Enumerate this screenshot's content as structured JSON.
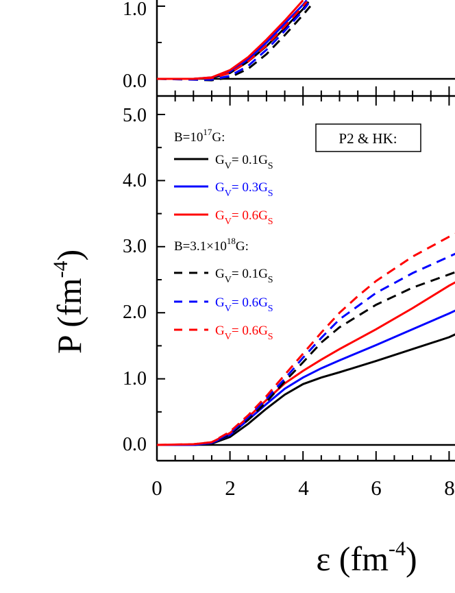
{
  "chart_data": [
    {
      "panel": "top",
      "type": "line",
      "note": "partially visible upper panel (cropped)",
      "ylim": [
        -0.25,
        1.15
      ],
      "xlim": [
        0,
        8.2
      ],
      "y_ticks": [
        {
          "value": 1.0,
          "label": "1.0"
        },
        {
          "value": 0.0,
          "label": "0.0"
        }
      ],
      "series": [
        {
          "color": "#000000",
          "dash": "solid",
          "points": [
            [
              0,
              0
            ],
            [
              1,
              0
            ],
            [
              1.5,
              0.01
            ],
            [
              2,
              0.08
            ],
            [
              2.5,
              0.24
            ],
            [
              3,
              0.45
            ],
            [
              3.5,
              0.7
            ],
            [
              4,
              0.96
            ],
            [
              4.15,
              1.06
            ]
          ]
        },
        {
          "color": "#0000ff",
          "dash": "solid",
          "points": [
            [
              0,
              0
            ],
            [
              1,
              0
            ],
            [
              1.5,
              0.02
            ],
            [
              2,
              0.1
            ],
            [
              2.5,
              0.27
            ],
            [
              3,
              0.5
            ],
            [
              3.5,
              0.76
            ],
            [
              4,
              1.02
            ],
            [
              4.1,
              1.08
            ]
          ]
        },
        {
          "color": "#ff0000",
          "dash": "solid",
          "points": [
            [
              0,
              0
            ],
            [
              1,
              0
            ],
            [
              1.5,
              0.02
            ],
            [
              2,
              0.12
            ],
            [
              2.5,
              0.3
            ],
            [
              3,
              0.54
            ],
            [
              3.5,
              0.8
            ],
            [
              4,
              1.08
            ]
          ]
        },
        {
          "color": "#000000",
          "dash": "dashed",
          "points": [
            [
              0,
              0
            ],
            [
              1,
              -0.01
            ],
            [
              1.5,
              -0.02
            ],
            [
              2,
              0.02
            ],
            [
              2.5,
              0.14
            ],
            [
              3,
              0.34
            ],
            [
              3.5,
              0.6
            ],
            [
              4,
              0.88
            ],
            [
              4.2,
              1.0
            ]
          ]
        },
        {
          "color": "#0000ff",
          "dash": "dashed",
          "points": [
            [
              0,
              0
            ],
            [
              1,
              -0.01
            ],
            [
              1.5,
              -0.01
            ],
            [
              2,
              0.04
            ],
            [
              2.5,
              0.18
            ],
            [
              3,
              0.4
            ],
            [
              3.5,
              0.66
            ],
            [
              4,
              0.94
            ],
            [
              4.15,
              1.04
            ]
          ]
        },
        {
          "color": "#ff0000",
          "dash": "dashed",
          "points": [
            [
              0,
              0
            ],
            [
              1,
              0
            ],
            [
              1.5,
              0.01
            ],
            [
              2,
              0.08
            ],
            [
              2.5,
              0.24
            ],
            [
              3,
              0.46
            ],
            [
              3.5,
              0.72
            ],
            [
              4,
              1.0
            ],
            [
              4.1,
              1.06
            ]
          ]
        }
      ]
    },
    {
      "panel": "bottom",
      "type": "line",
      "xlabel": "ε (fm",
      "xlabel_sup": "-4",
      "xlabel_close": ")",
      "ylabel": "P (fm",
      "ylabel_sup": "-4",
      "ylabel_close": ")",
      "xlim": [
        0,
        8.2
      ],
      "ylim": [
        -0.25,
        5.2
      ],
      "x_ticks": [
        {
          "value": 0,
          "label": "0"
        },
        {
          "value": 2,
          "label": "2"
        },
        {
          "value": 4,
          "label": "4"
        },
        {
          "value": 6,
          "label": "6"
        },
        {
          "value": 8,
          "label": "8"
        }
      ],
      "y_ticks": [
        {
          "value": 5.0,
          "label": "5.0"
        },
        {
          "value": 4.0,
          "label": "4.0"
        },
        {
          "value": 3.0,
          "label": "3.0"
        },
        {
          "value": 2.0,
          "label": "2.0"
        },
        {
          "value": 1.0,
          "label": "1.0"
        },
        {
          "value": 0.0,
          "label": "0.0"
        }
      ],
      "annotation": "P2 & HK:",
      "legend": {
        "group1_title": "B=10",
        "group1_title_sup": "17",
        "group1_title_tail": "G:",
        "group2_title": "B=3.1×10",
        "group2_title_sup": "18",
        "group2_title_tail": "G:",
        "entries": [
          {
            "text": "G",
            "sub": "V",
            "mid": "= 0.1G",
            "sub2": "S",
            "color": "#000000",
            "dash": "solid"
          },
          {
            "text": "G",
            "sub": "V",
            "mid": "= 0.3G",
            "sub2": "S",
            "color": "#0000ff",
            "dash": "solid"
          },
          {
            "text": "G",
            "sub": "V",
            "mid": "= 0.6G",
            "sub2": "S",
            "color": "#ff0000",
            "dash": "solid"
          },
          {
            "text": "G",
            "sub": "V",
            "mid": "= 0.1G",
            "sub2": "S",
            "color": "#000000",
            "dash": "dashed"
          },
          {
            "text": "G",
            "sub": "V",
            "mid": "= 0.6G",
            "sub2": "S",
            "color": "#0000ff",
            "dash": "dashed"
          },
          {
            "text": "G",
            "sub": "V",
            "mid": "= 0.6G",
            "sub2": "S",
            "color": "#ff0000",
            "dash": "dashed"
          }
        ]
      },
      "series": [
        {
          "color": "#000000",
          "dash": "solid",
          "points": [
            [
              0,
              0
            ],
            [
              1,
              0
            ],
            [
              1.5,
              0.02
            ],
            [
              2,
              0.12
            ],
            [
              2.5,
              0.32
            ],
            [
              3,
              0.55
            ],
            [
              3.5,
              0.76
            ],
            [
              4,
              0.92
            ],
            [
              4.5,
              1.02
            ],
            [
              5,
              1.1
            ],
            [
              6,
              1.27
            ],
            [
              7,
              1.45
            ],
            [
              8,
              1.63
            ],
            [
              8.2,
              1.68
            ]
          ]
        },
        {
          "color": "#0000ff",
          "dash": "solid",
          "points": [
            [
              0,
              0
            ],
            [
              1,
              0
            ],
            [
              1.5,
              0.03
            ],
            [
              2,
              0.15
            ],
            [
              2.5,
              0.38
            ],
            [
              3,
              0.62
            ],
            [
              3.5,
              0.85
            ],
            [
              4,
              1.02
            ],
            [
              4.5,
              1.16
            ],
            [
              5,
              1.28
            ],
            [
              6,
              1.51
            ],
            [
              7,
              1.75
            ],
            [
              8,
              1.99
            ],
            [
              8.2,
              2.04
            ]
          ]
        },
        {
          "color": "#ff0000",
          "dash": "solid",
          "points": [
            [
              0,
              0
            ],
            [
              1,
              0.01
            ],
            [
              1.5,
              0.04
            ],
            [
              2,
              0.18
            ],
            [
              2.5,
              0.42
            ],
            [
              3,
              0.68
            ],
            [
              3.5,
              0.93
            ],
            [
              4,
              1.12
            ],
            [
              4.5,
              1.29
            ],
            [
              5,
              1.45
            ],
            [
              6,
              1.75
            ],
            [
              7,
              2.07
            ],
            [
              8,
              2.41
            ],
            [
              8.2,
              2.47
            ]
          ]
        },
        {
          "color": "#000000",
          "dash": "dashed",
          "points": [
            [
              0,
              0
            ],
            [
              1,
              0
            ],
            [
              1.5,
              0.03
            ],
            [
              2,
              0.16
            ],
            [
              2.5,
              0.38
            ],
            [
              3,
              0.65
            ],
            [
              3.5,
              0.96
            ],
            [
              4,
              1.25
            ],
            [
              4.5,
              1.55
            ],
            [
              5,
              1.78
            ],
            [
              5.5,
              1.95
            ],
            [
              6,
              2.12
            ],
            [
              7,
              2.38
            ],
            [
              8,
              2.58
            ],
            [
              8.2,
              2.62
            ]
          ]
        },
        {
          "color": "#0000ff",
          "dash": "dashed",
          "points": [
            [
              0,
              0
            ],
            [
              1,
              0
            ],
            [
              1.5,
              0.03
            ],
            [
              2,
              0.18
            ],
            [
              2.5,
              0.42
            ],
            [
              3,
              0.7
            ],
            [
              3.5,
              1.0
            ],
            [
              4,
              1.32
            ],
            [
              4.5,
              1.62
            ],
            [
              5,
              1.9
            ],
            [
              5.5,
              2.1
            ],
            [
              6,
              2.3
            ],
            [
              7,
              2.6
            ],
            [
              8,
              2.85
            ],
            [
              8.2,
              2.9
            ]
          ]
        },
        {
          "color": "#ff0000",
          "dash": "dashed",
          "points": [
            [
              0,
              0
            ],
            [
              1,
              0.01
            ],
            [
              1.5,
              0.04
            ],
            [
              2,
              0.2
            ],
            [
              2.5,
              0.45
            ],
            [
              3,
              0.74
            ],
            [
              3.5,
              1.06
            ],
            [
              4,
              1.38
            ],
            [
              4.5,
              1.7
            ],
            [
              5,
              2.0
            ],
            [
              5.5,
              2.25
            ],
            [
              6,
              2.48
            ],
            [
              7,
              2.85
            ],
            [
              8,
              3.15
            ],
            [
              8.2,
              3.2
            ]
          ]
        }
      ]
    }
  ]
}
